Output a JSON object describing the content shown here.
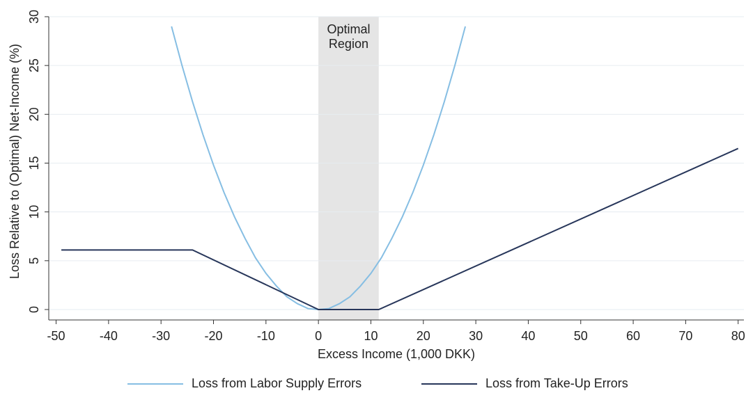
{
  "chart_data": {
    "type": "line",
    "xlabel": "Excess Income (1,000 DKK)",
    "ylabel": "Loss Relative to (Optimal) Net-Income (%)",
    "xlim": [
      -51.4,
      81.1
    ],
    "ylim": [
      -1.07,
      30
    ],
    "xticks": [
      -50,
      -40,
      -30,
      -20,
      -10,
      0,
      10,
      20,
      30,
      40,
      50,
      60,
      70,
      80
    ],
    "yticks": [
      0,
      5,
      10,
      15,
      20,
      25,
      30
    ],
    "grid": true,
    "legend": "bottom",
    "shaded_region": {
      "x": [
        0,
        11.5
      ],
      "color": "#e5e5e5",
      "annotation": [
        "Optimal",
        "Region"
      ]
    },
    "series": [
      {
        "name": "Loss from Labor Supply Errors",
        "color": "#86bee3",
        "x": [
          -28,
          -26,
          -24,
          -22,
          -20,
          -18,
          -16,
          -14,
          -12,
          -10,
          -8,
          -6,
          -4,
          -2,
          0,
          2,
          4,
          6,
          8,
          10,
          12,
          14,
          16,
          18,
          20,
          22,
          24,
          26,
          28
        ],
        "values": [
          29.0,
          25.0,
          21.3,
          17.9,
          14.8,
          12.0,
          9.5,
          7.3,
          5.3,
          3.7,
          2.4,
          1.3,
          0.6,
          0.1,
          0,
          0.1,
          0.6,
          1.3,
          2.4,
          3.7,
          5.3,
          7.3,
          9.5,
          12.0,
          14.8,
          17.9,
          21.3,
          25.0,
          29.0
        ]
      },
      {
        "name": "Loss from Take-Up Errors",
        "color": "#27365a",
        "x": [
          -49,
          -24,
          0,
          11.5,
          80
        ],
        "values": [
          6.1,
          6.1,
          0,
          0,
          16.5
        ]
      }
    ]
  }
}
